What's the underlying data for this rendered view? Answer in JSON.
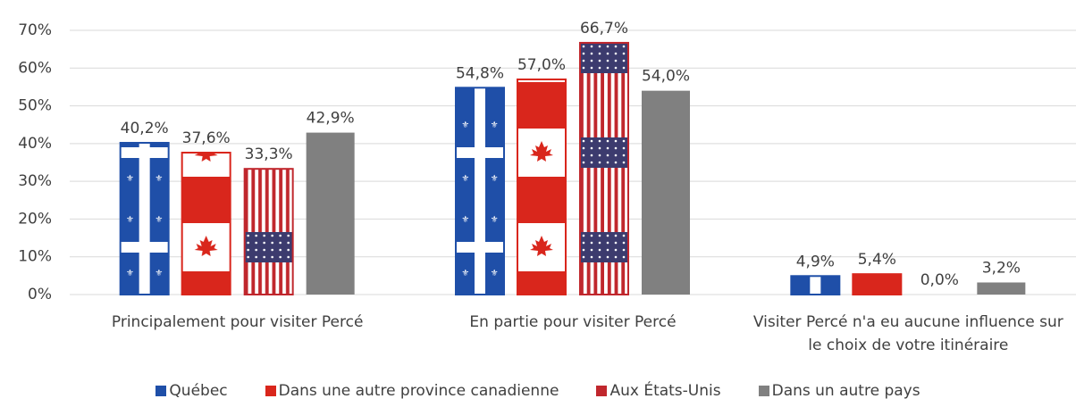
{
  "chart_data": {
    "type": "bar",
    "categories": [
      "Principalement pour visiter Percé",
      "En partie pour visiter Percé",
      "Visiter Percé n'a eu aucune influence sur le choix de votre itinéraire"
    ],
    "series": [
      {
        "name": "Québec",
        "color": "#1f4fa8",
        "values": [
          40.2,
          54.8,
          4.9
        ],
        "value_labels": [
          "40,2%",
          "54,8%",
          "4,9%"
        ]
      },
      {
        "name": "Dans une autre province canadienne",
        "color": "#d9261c",
        "values": [
          37.6,
          57.0,
          5.4
        ],
        "value_labels": [
          "37,6%",
          "57,0%",
          "5,4%"
        ]
      },
      {
        "name": "Aux États-Unis",
        "color": "#c0272d",
        "values": [
          33.3,
          66.7,
          0.0
        ],
        "value_labels": [
          "33,3%",
          "66,7%",
          "0,0%"
        ]
      },
      {
        "name": "Dans un autre pays",
        "color": "#808080",
        "values": [
          42.9,
          54.0,
          3.2
        ],
        "value_labels": [
          "42,9%",
          "54,0%",
          "3,2%"
        ]
      }
    ],
    "ylim": [
      0,
      70
    ],
    "yticks": [
      {
        "value": 0,
        "label": "0%"
      },
      {
        "value": 10,
        "label": "10%"
      },
      {
        "value": 20,
        "label": "20%"
      },
      {
        "value": 30,
        "label": "30%"
      },
      {
        "value": 40,
        "label": "40%"
      },
      {
        "value": 50,
        "label": "50%"
      },
      {
        "value": 60,
        "label": "60%"
      },
      {
        "value": 70,
        "label": "70%"
      }
    ],
    "grid": true,
    "legend": "bottom"
  }
}
